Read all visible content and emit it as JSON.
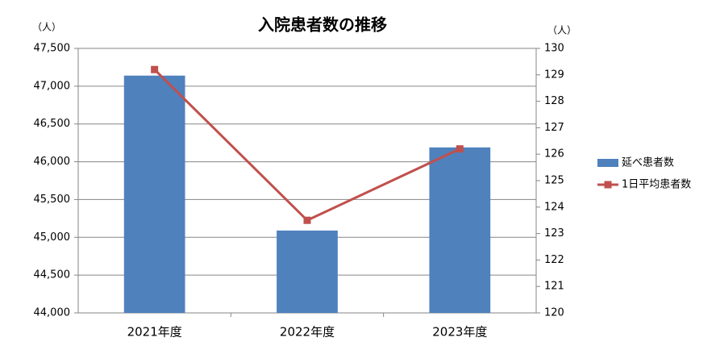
{
  "chart_data": {
    "type": "bar",
    "title": "入院患者数の推移",
    "y_unit_label": "（人）",
    "y2_unit_label": "（人）",
    "categories": [
      "2021年度",
      "2022年度",
      "2023年度"
    ],
    "series": [
      {
        "name": "延べ患者数",
        "type": "bar",
        "color": "#4f81bd",
        "values": [
          47140,
          45090,
          46190
        ]
      },
      {
        "name": "1日平均患者数",
        "type": "line",
        "axis": "y2",
        "color": "#c0504d",
        "values": [
          129.2,
          123.5,
          126.2
        ]
      }
    ],
    "ylim": [
      44000,
      47500
    ],
    "yticks": [
      {
        "value": 44000,
        "label": "44,000"
      },
      {
        "value": 44500,
        "label": "44,500"
      },
      {
        "value": 45000,
        "label": "45,000"
      },
      {
        "value": 45500,
        "label": "45,500"
      },
      {
        "value": 46000,
        "label": "46,000"
      },
      {
        "value": 46500,
        "label": "46,500"
      },
      {
        "value": 47000,
        "label": "47,000"
      },
      {
        "value": 47500,
        "label": "47,500"
      }
    ],
    "y2lim": [
      120,
      130
    ],
    "y2ticks": [
      120,
      121,
      122,
      123,
      124,
      125,
      126,
      127,
      128,
      129,
      130
    ],
    "grid": true,
    "legend": "right"
  }
}
